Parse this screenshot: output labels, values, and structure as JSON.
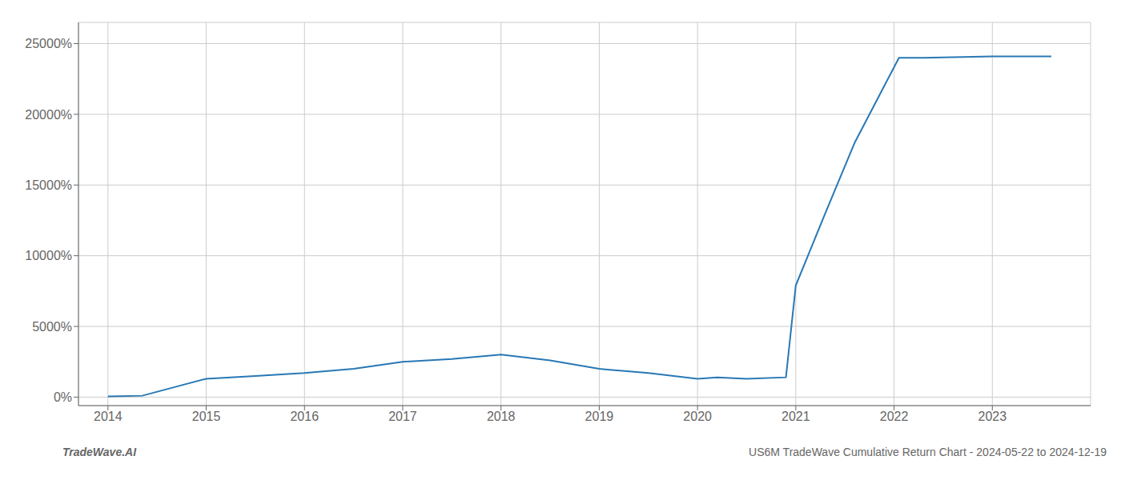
{
  "chart_data": {
    "type": "line",
    "annotations": [
      "TradeWave.AI",
      "US6M TradeWave Cumulative Return Chart - 2024-05-22 to 2024-12-19"
    ],
    "x": [
      2014.0,
      2014.35,
      2015.0,
      2015.5,
      2016.0,
      2016.5,
      2017.0,
      2017.5,
      2018.0,
      2018.5,
      2019.0,
      2019.5,
      2020.0,
      2020.2,
      2020.5,
      2020.9,
      2021.0,
      2021.3,
      2021.6,
      2021.9,
      2022.05,
      2022.3,
      2023.0,
      2023.6
    ],
    "values": [
      50,
      100,
      1300,
      1500,
      1700,
      2000,
      2500,
      2700,
      3000,
      2600,
      2000,
      1700,
      1300,
      1400,
      1300,
      1400,
      7900,
      13000,
      18000,
      22000,
      24000,
      24000,
      24100,
      24100
    ],
    "color": "#2878b5",
    "xlim": [
      2013.7,
      2024.0
    ],
    "xticks": [
      2014,
      2015,
      2016,
      2017,
      2018,
      2019,
      2020,
      2021,
      2022,
      2023
    ],
    "ylim": [
      -600,
      26500
    ],
    "yticks": [
      {
        "value": 0,
        "label": "0%"
      },
      {
        "value": 5000,
        "label": "5000%"
      },
      {
        "value": 10000,
        "label": "10000%"
      },
      {
        "value": 15000,
        "label": "15000%"
      },
      {
        "value": 20000,
        "label": "20000%"
      },
      {
        "value": 25000,
        "label": "25000%"
      }
    ],
    "grid": true
  }
}
